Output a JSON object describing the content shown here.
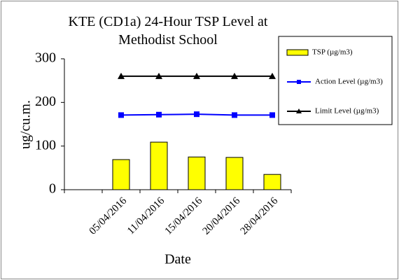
{
  "chart_data": {
    "type": "bar_line",
    "title": "KTE (CD1a) 24-Hour TSP Level at Methodist School",
    "y_label": "ug/cu.m.",
    "x_label": "Date",
    "categories": [
      null,
      "05/04/2016",
      "11/04/2016",
      "15/04/2016",
      "20/04/2016",
      "28/04/2016"
    ],
    "series": [
      {
        "name": "TSP (µg/m3)",
        "kind": "bar",
        "color": "#ffff00",
        "values": [
          null,
          69,
          109,
          75,
          74,
          35
        ]
      },
      {
        "name": "Action Level (µg/m3)",
        "kind": "line",
        "marker": "square",
        "color": "#0000ff",
        "values": [
          null,
          171,
          172,
          173,
          171,
          171
        ]
      },
      {
        "name": "Limit Level (µg/m3)",
        "kind": "line",
        "marker": "triangle",
        "color": "#000000",
        "values": [
          null,
          260,
          260,
          260,
          260,
          260
        ]
      }
    ],
    "ylim": [
      0,
      300
    ],
    "yticks": [
      0,
      100,
      200,
      300
    ],
    "grid": false,
    "legend": "right"
  }
}
